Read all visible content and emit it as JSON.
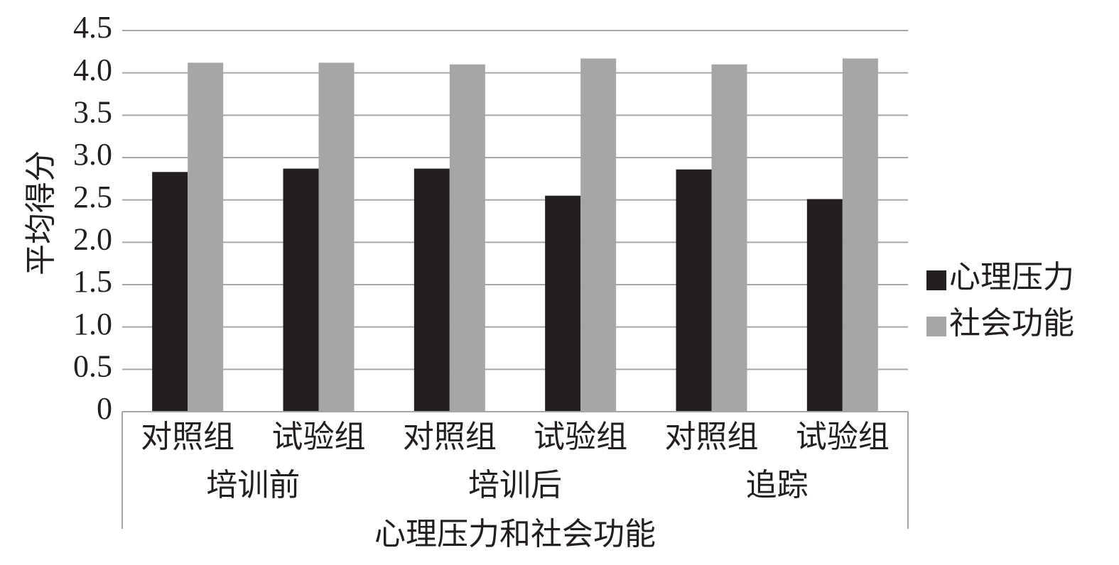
{
  "chart_data": {
    "type": "bar",
    "y_label": "平均得分",
    "x_label": "心理压力和社会功能",
    "categories": [
      "对照组",
      "试验组",
      "对照组",
      "试验组",
      "对照组",
      "试验组"
    ],
    "category_groups": [
      "培训前",
      "培训后",
      "追踪"
    ],
    "series": [
      {
        "name": "心理压力",
        "color": "#231f20",
        "values": [
          2.83,
          2.87,
          2.87,
          2.55,
          2.86,
          2.51
        ]
      },
      {
        "name": "社会功能",
        "color": "#a7a6a6",
        "values": [
          4.12,
          4.12,
          4.1,
          4.17,
          4.1,
          4.17
        ]
      }
    ],
    "ylim": [
      0,
      4.5
    ],
    "yticks": [
      0,
      0.5,
      {
        "value": 1,
        "label": "1.0"
      },
      1.5,
      {
        "value": 2,
        "label": "2.0"
      },
      2.5,
      {
        "value": 3,
        "label": "3.0"
      },
      3.5,
      {
        "value": 4,
        "label": "4.0"
      },
      4.5
    ],
    "grid": true,
    "legend": "right"
  }
}
